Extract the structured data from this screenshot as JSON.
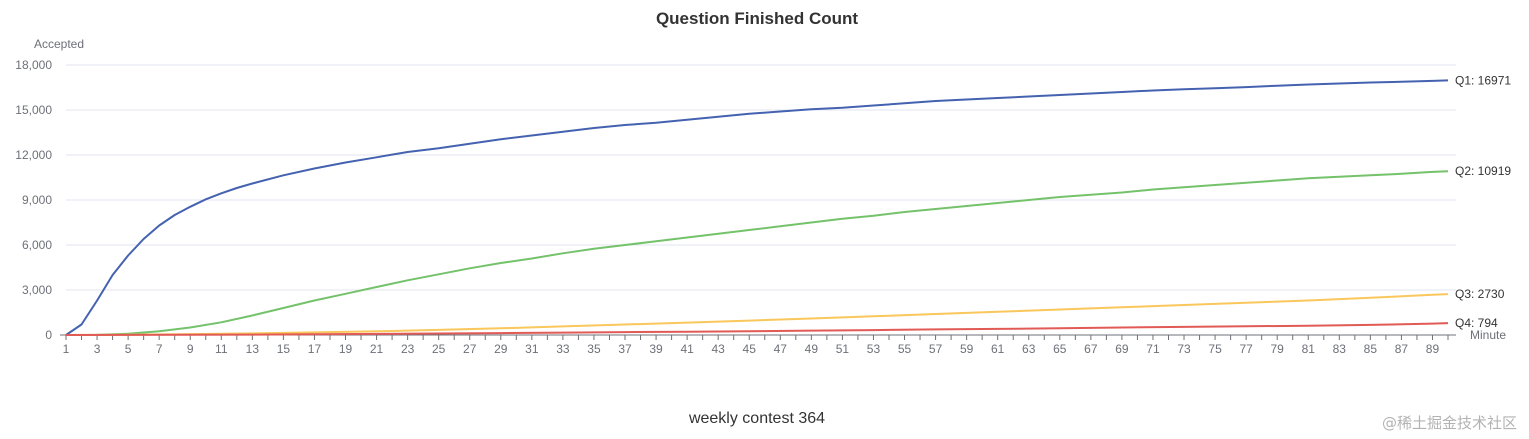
{
  "chart_data": {
    "type": "line",
    "title": "Question Finished Count",
    "ylabel": "Accepted",
    "xlabel": "Minute",
    "ylim": [
      0,
      18000
    ],
    "yticks": [
      0,
      3000,
      6000,
      9000,
      12000,
      15000,
      18000
    ],
    "ytick_labels": [
      "0",
      "3,000",
      "6,000",
      "9,000",
      "12,000",
      "15,000",
      "18,000"
    ],
    "xrange": [
      1,
      90
    ],
    "xtick_labels": [
      "1",
      "3",
      "5",
      "7",
      "9",
      "11",
      "13",
      "15",
      "17",
      "19",
      "21",
      "23",
      "25",
      "27",
      "29",
      "31",
      "33",
      "35",
      "37",
      "39",
      "41",
      "43",
      "45",
      "47",
      "49",
      "51",
      "53",
      "55",
      "57",
      "59",
      "61",
      "63",
      "65",
      "67",
      "69",
      "71",
      "73",
      "75",
      "77",
      "79",
      "81",
      "83",
      "85",
      "87",
      "89"
    ],
    "grid": true,
    "series": [
      {
        "name": "Q1",
        "end_label": "Q1: 16971",
        "color": "#4462b0",
        "points": [
          [
            1,
            0
          ],
          [
            2,
            700
          ],
          [
            3,
            2300
          ],
          [
            4,
            4000
          ],
          [
            5,
            5300
          ],
          [
            6,
            6400
          ],
          [
            7,
            7300
          ],
          [
            8,
            8000
          ],
          [
            9,
            8550
          ],
          [
            10,
            9050
          ],
          [
            11,
            9450
          ],
          [
            12,
            9800
          ],
          [
            13,
            10100
          ],
          [
            15,
            10650
          ],
          [
            17,
            11100
          ],
          [
            19,
            11500
          ],
          [
            21,
            11850
          ],
          [
            23,
            12200
          ],
          [
            25,
            12450
          ],
          [
            27,
            12750
          ],
          [
            29,
            13050
          ],
          [
            31,
            13300
          ],
          [
            33,
            13550
          ],
          [
            35,
            13800
          ],
          [
            37,
            14000
          ],
          [
            39,
            14150
          ],
          [
            41,
            14350
          ],
          [
            43,
            14550
          ],
          [
            45,
            14750
          ],
          [
            47,
            14900
          ],
          [
            49,
            15050
          ],
          [
            51,
            15150
          ],
          [
            53,
            15300
          ],
          [
            55,
            15450
          ],
          [
            57,
            15600
          ],
          [
            59,
            15700
          ],
          [
            61,
            15800
          ],
          [
            63,
            15900
          ],
          [
            65,
            16000
          ],
          [
            67,
            16100
          ],
          [
            69,
            16200
          ],
          [
            71,
            16300
          ],
          [
            73,
            16380
          ],
          [
            75,
            16450
          ],
          [
            77,
            16530
          ],
          [
            79,
            16620
          ],
          [
            81,
            16700
          ],
          [
            83,
            16770
          ],
          [
            85,
            16830
          ],
          [
            87,
            16880
          ],
          [
            89,
            16940
          ],
          [
            90,
            16971
          ]
        ]
      },
      {
        "name": "Q2",
        "end_label": "Q2: 10919",
        "color": "#74c26a",
        "points": [
          [
            1,
            0
          ],
          [
            3,
            10
          ],
          [
            5,
            80
          ],
          [
            7,
            250
          ],
          [
            9,
            500
          ],
          [
            11,
            850
          ],
          [
            13,
            1300
          ],
          [
            15,
            1800
          ],
          [
            17,
            2300
          ],
          [
            19,
            2750
          ],
          [
            21,
            3200
          ],
          [
            23,
            3650
          ],
          [
            25,
            4050
          ],
          [
            27,
            4450
          ],
          [
            29,
            4800
          ],
          [
            31,
            5100
          ],
          [
            33,
            5450
          ],
          [
            35,
            5750
          ],
          [
            37,
            6000
          ],
          [
            39,
            6250
          ],
          [
            41,
            6500
          ],
          [
            43,
            6750
          ],
          [
            45,
            7000
          ],
          [
            47,
            7250
          ],
          [
            49,
            7500
          ],
          [
            51,
            7750
          ],
          [
            53,
            7950
          ],
          [
            55,
            8200
          ],
          [
            57,
            8400
          ],
          [
            59,
            8600
          ],
          [
            61,
            8800
          ],
          [
            63,
            9000
          ],
          [
            65,
            9200
          ],
          [
            67,
            9350
          ],
          [
            69,
            9500
          ],
          [
            71,
            9700
          ],
          [
            73,
            9850
          ],
          [
            75,
            10000
          ],
          [
            77,
            10150
          ],
          [
            79,
            10300
          ],
          [
            81,
            10450
          ],
          [
            83,
            10550
          ],
          [
            85,
            10650
          ],
          [
            87,
            10750
          ],
          [
            89,
            10870
          ],
          [
            90,
            10919
          ]
        ]
      },
      {
        "name": "Q3",
        "end_label": "Q3: 2730",
        "color": "#f9c75b",
        "points": [
          [
            1,
            0
          ],
          [
            5,
            20
          ],
          [
            9,
            60
          ],
          [
            13,
            110
          ],
          [
            17,
            170
          ],
          [
            21,
            250
          ],
          [
            25,
            340
          ],
          [
            29,
            450
          ],
          [
            33,
            570
          ],
          [
            37,
            700
          ],
          [
            41,
            830
          ],
          [
            45,
            960
          ],
          [
            49,
            1100
          ],
          [
            53,
            1250
          ],
          [
            57,
            1400
          ],
          [
            61,
            1550
          ],
          [
            65,
            1700
          ],
          [
            69,
            1850
          ],
          [
            73,
            2000
          ],
          [
            77,
            2150
          ],
          [
            81,
            2300
          ],
          [
            85,
            2480
          ],
          [
            89,
            2680
          ],
          [
            90,
            2730
          ]
        ]
      },
      {
        "name": "Q4",
        "end_label": "Q4: 794",
        "color": "#e15a55",
        "points": [
          [
            1,
            0
          ],
          [
            5,
            5
          ],
          [
            9,
            15
          ],
          [
            13,
            30
          ],
          [
            17,
            50
          ],
          [
            21,
            75
          ],
          [
            25,
            100
          ],
          [
            29,
            130
          ],
          [
            33,
            160
          ],
          [
            37,
            190
          ],
          [
            41,
            220
          ],
          [
            45,
            250
          ],
          [
            49,
            290
          ],
          [
            53,
            330
          ],
          [
            57,
            370
          ],
          [
            61,
            410
          ],
          [
            65,
            450
          ],
          [
            69,
            500
          ],
          [
            73,
            540
          ],
          [
            77,
            580
          ],
          [
            81,
            620
          ],
          [
            85,
            670
          ],
          [
            89,
            760
          ],
          [
            90,
            794
          ]
        ]
      }
    ]
  },
  "caption": "weekly contest 364",
  "watermark": "@稀土掘金技术社区"
}
